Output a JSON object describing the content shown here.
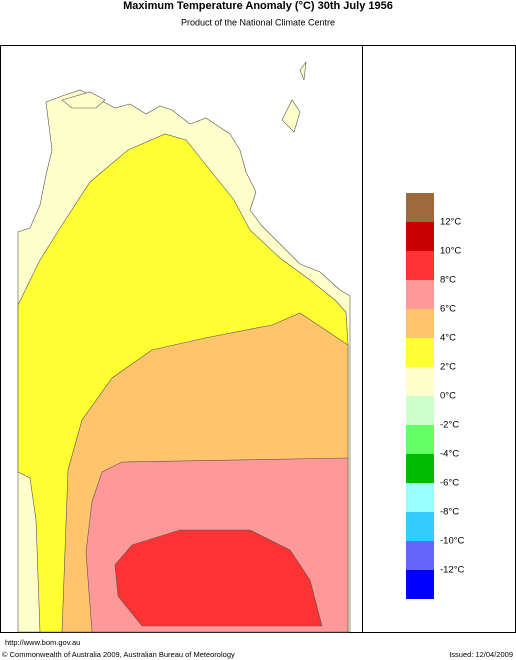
{
  "header": {
    "title": "Maximum Temperature Anomaly (°C)  30th July 1956",
    "subtitle": "Product of the National Climate Centre"
  },
  "legend": {
    "colors": [
      "#9c6a3c",
      "#c80000",
      "#ff3333",
      "#ff9999",
      "#ffc46c",
      "#ffff33",
      "#ffffcc",
      "#ccffcc",
      "#66ff66",
      "#00bb00",
      "#99ffff",
      "#33ccff",
      "#6666ff",
      "#0000ff"
    ],
    "labels": [
      "12°C",
      "10°C",
      "8°C",
      "6°C",
      "4°C",
      "2°C",
      "0°C",
      "-2°C",
      "-4°C",
      "-6°C",
      "-8°C",
      "-10°C",
      "-12°C"
    ]
  },
  "footer": {
    "url": "http://www.bom.gov.au",
    "copyright": "© Commonwealth of Australia 2009, Australian Bureau of Meteorology",
    "issued": "Issued: 12/04/2009"
  }
}
